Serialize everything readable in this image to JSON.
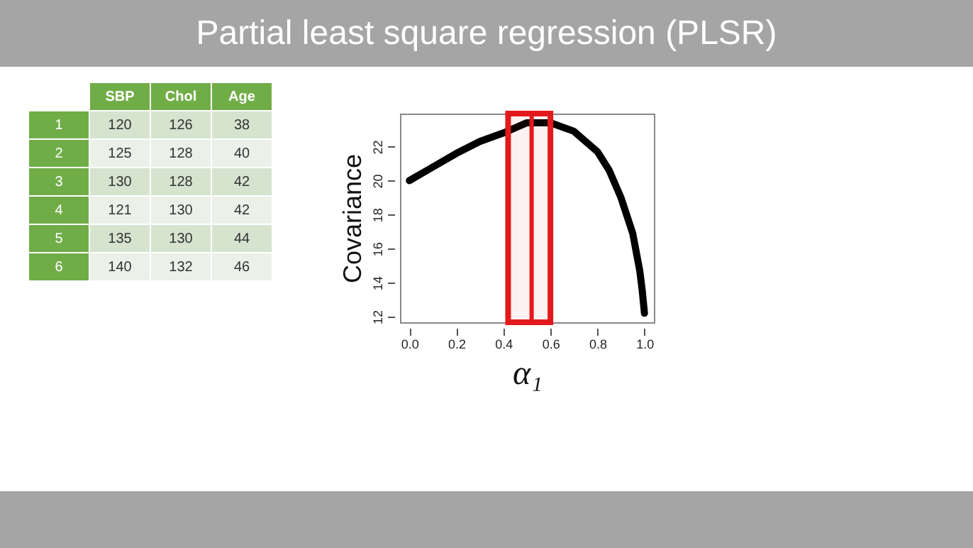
{
  "chart_data": [
    {
      "type": "heatmap",
      "data_labels": true,
      "categories": [
        "SBP",
        "Chol",
        "Age"
      ],
      "y_categories": [
        "1",
        "2",
        "3",
        "4",
        "5",
        "6"
      ],
      "cells": [
        [
          120,
          126,
          38
        ],
        [
          125,
          128,
          40
        ],
        [
          130,
          128,
          42
        ],
        [
          121,
          130,
          42
        ],
        [
          135,
          130,
          44
        ],
        [
          140,
          132,
          46
        ]
      ]
    },
    {
      "type": "line",
      "title": "Partial least square regression (PLSR)",
      "xlabel": "α₁",
      "ylabel": "Covariance",
      "x": [
        0,
        0.1,
        0.2,
        0.3,
        0.4,
        0.5,
        0.6,
        0.7,
        0.8,
        0.85,
        0.9,
        0.95,
        0.98,
        0.99,
        1.0
      ],
      "series": [
        {
          "color": "#000000",
          "values": [
            20.0,
            20.8,
            21.6,
            22.3,
            22.8,
            23.4,
            23.4,
            22.9,
            21.7,
            20.6,
            19.0,
            16.9,
            14.7,
            13.6,
            12.2
          ]
        }
      ],
      "xlim": [
        -0.04,
        1.04
      ],
      "ylim": [
        11.67,
        23.94
      ],
      "xticks": [
        {
          "value": 0,
          "label": "0.0"
        },
        0.2,
        0.4,
        0.6,
        0.8,
        {
          "value": 1,
          "label": "1.0"
        }
      ],
      "yticks": [
        12,
        14,
        16,
        18,
        20,
        22
      ],
      "ref_lines": [
        {
          "axis": "x",
          "value": 0.52,
          "color": "#e31a1c"
        }
      ],
      "bands": [
        {
          "axis": "x",
          "from": 0.42,
          "to": 0.6,
          "color": "#e31a1c"
        }
      ],
      "grid": false,
      "marker": "none",
      "line_style": "solid"
    }
  ]
}
